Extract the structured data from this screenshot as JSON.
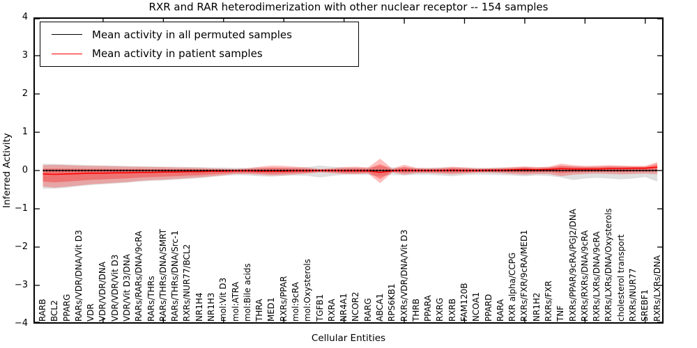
{
  "title": "RXR and RAR heterodimerization with other nuclear receptor -- 154 samples",
  "axes": {
    "xlabel": "Cellular Entities",
    "ylabel": "Inferred Activity",
    "yticks": [
      "4",
      "3",
      "2",
      "1",
      "0",
      "−1",
      "−2",
      "−3",
      "−4"
    ]
  },
  "legend": {
    "items": [
      {
        "label": "Mean activity in all permuted samples",
        "color": "#000000"
      },
      {
        "label": "Mean activity in patient samples",
        "color": "#ff0000"
      }
    ]
  },
  "colors": {
    "patient_line": "#ff0000",
    "permuted_line": "#000000",
    "patient_band": "rgba(255,0,0,0.26)",
    "patient_band_inner": "rgba(255,0,0,0.30)",
    "permuted_band": "rgba(80,80,80,0.18)",
    "frame": "#000000"
  },
  "chart_data": {
    "type": "line",
    "title": "RXR and RAR heterodimerization with other nuclear receptor -- 154 samples",
    "xlabel": "Cellular Entities",
    "ylabel": "Inferred Activity",
    "ylim": [
      -4,
      4
    ],
    "grid": false,
    "legend_position": "upper left",
    "categories": [
      "RARB",
      "BCL2",
      "PPARG",
      "RARs/VDR/DNA/Vit D3",
      "VDR",
      "VDR/VDR/DNA",
      "VDR/VDR/Vit D3",
      "VDR/Vit D3/DNA",
      "RARs/RARs/DNA/9cRA",
      "RARs/THRs",
      "RARs/THRs/DNA/SMRT",
      "RARs/THRs/DNA/Src-1",
      "RXRs/NUR77/BCL2",
      "NR1H4",
      "NR1H3",
      "mol:Vit D3",
      "mol:ATRA",
      "mol:Bile acids",
      "THRA",
      "MED1",
      "RXRs/PPAR",
      "mol:9cRA",
      "mol:Oxysterols",
      "TGFB1",
      "RXRA",
      "NR4A1",
      "NCOR2",
      "RARG",
      "ABCA1",
      "RPS6KB1",
      "RXRs/VDR/DNA/Vit D3",
      "THRB",
      "PPARA",
      "RXRG",
      "RXRB",
      "FAM120B",
      "NCOA1",
      "PPARD",
      "RARA",
      "RXR alpha/CCPG",
      "RXRs/FXR/9cRA/MED1",
      "NR1H2",
      "RXRs/FXR",
      "TNF",
      "RXRs/PPAR/9cRA/PGJ2/DNA",
      "RXRs/RXRs/DNA/9cRA",
      "RXRs/LXRs/DNA/9cRA",
      "RXRs/LXRs/DNA/Oxysterols",
      "cholesterol transport",
      "RXRs/NUR77",
      "SREBF1",
      "RXRs/LXRs/DNA"
    ],
    "series": [
      {
        "name": "Mean activity in all permuted samples",
        "color": "#000000",
        "values": [
          0,
          0,
          0,
          0,
          0,
          0,
          0,
          0,
          0,
          0,
          0,
          0,
          0,
          0,
          0,
          0,
          0,
          0,
          0,
          0,
          0,
          0,
          0,
          0,
          0,
          0,
          0,
          0,
          0,
          0,
          0,
          0,
          0,
          0,
          0,
          0,
          0,
          0,
          0,
          0,
          0,
          0,
          0,
          0,
          0,
          0,
          0,
          0,
          0,
          0,
          0,
          0
        ]
      },
      {
        "name": "Mean activity in patient samples",
        "color": "#ff0000",
        "values": [
          -0.09,
          -0.1,
          -0.09,
          -0.08,
          -0.07,
          -0.07,
          -0.06,
          -0.06,
          -0.05,
          -0.05,
          -0.04,
          -0.04,
          -0.03,
          -0.03,
          -0.02,
          -0.02,
          -0.01,
          -0.01,
          -0.02,
          -0.02,
          -0.02,
          -0.01,
          -0.01,
          0,
          0,
          -0.01,
          -0.01,
          -0.01,
          -0.05,
          -0.01,
          0.01,
          0,
          0,
          0,
          0.01,
          0,
          0,
          0.01,
          0.01,
          0.02,
          0.03,
          0.02,
          0.03,
          0.05,
          0.04,
          0.04,
          0.04,
          0.05,
          0.05,
          0.06,
          0.06,
          0.09
        ]
      }
    ],
    "bands": {
      "patient_upper": [
        0.14,
        0.15,
        0.14,
        0.13,
        0.12,
        0.12,
        0.11,
        0.1,
        0.1,
        0.09,
        0.09,
        0.08,
        0.08,
        0.07,
        0.06,
        0.05,
        0.04,
        0.06,
        0.1,
        0.13,
        0.12,
        0.1,
        0.08,
        0.04,
        0.06,
        0.09,
        0.1,
        0.08,
        0.31,
        0.05,
        0.15,
        0.07,
        0.06,
        0.07,
        0.1,
        0.08,
        0.06,
        0.06,
        0.07,
        0.09,
        0.11,
        0.09,
        0.1,
        0.18,
        0.14,
        0.12,
        0.13,
        0.14,
        0.13,
        0.12,
        0.12,
        0.22
      ],
      "patient_lower": [
        -0.42,
        -0.45,
        -0.42,
        -0.39,
        -0.36,
        -0.34,
        -0.32,
        -0.3,
        -0.27,
        -0.25,
        -0.24,
        -0.22,
        -0.2,
        -0.18,
        -0.15,
        -0.12,
        -0.09,
        -0.09,
        -0.11,
        -0.13,
        -0.12,
        -0.1,
        -0.08,
        -0.05,
        -0.07,
        -0.09,
        -0.09,
        -0.08,
        -0.33,
        -0.05,
        -0.11,
        -0.07,
        -0.07,
        -0.08,
        -0.1,
        -0.08,
        -0.06,
        -0.06,
        -0.07,
        -0.09,
        -0.11,
        -0.09,
        -0.09,
        -0.15,
        -0.11,
        -0.09,
        -0.08,
        -0.09,
        -0.1,
        -0.09,
        -0.08,
        -0.1
      ],
      "permuted_upper": [
        0.18,
        0.17,
        0.16,
        0.15,
        0.14,
        0.13,
        0.13,
        0.12,
        0.11,
        0.11,
        0.1,
        0.1,
        0.09,
        0.09,
        0.08,
        0.08,
        0.07,
        0.07,
        0.08,
        0.08,
        0.08,
        0.08,
        0.09,
        0.13,
        0.1,
        0.08,
        0.08,
        0.08,
        0.12,
        0.08,
        0.08,
        0.07,
        0.07,
        0.08,
        0.08,
        0.08,
        0.07,
        0.07,
        0.08,
        0.08,
        0.09,
        0.08,
        0.09,
        0.11,
        0.11,
        0.1,
        0.1,
        0.11,
        0.11,
        0.1,
        0.1,
        0.1
      ],
      "permuted_lower": [
        -0.48,
        -0.47,
        -0.45,
        -0.41,
        -0.38,
        -0.36,
        -0.34,
        -0.32,
        -0.29,
        -0.27,
        -0.26,
        -0.24,
        -0.22,
        -0.2,
        -0.17,
        -0.14,
        -0.12,
        -0.13,
        -0.15,
        -0.16,
        -0.14,
        -0.13,
        -0.14,
        -0.18,
        -0.14,
        -0.11,
        -0.11,
        -0.11,
        -0.15,
        -0.11,
        -0.13,
        -0.11,
        -0.11,
        -0.13,
        -0.15,
        -0.12,
        -0.11,
        -0.11,
        -0.12,
        -0.13,
        -0.15,
        -0.13,
        -0.14,
        -0.18,
        -0.25,
        -0.21,
        -0.19,
        -0.21,
        -0.23,
        -0.21,
        -0.17,
        -0.29
      ],
      "inner_band_scale": 0.6
    },
    "xtick_major_every": 5
  }
}
